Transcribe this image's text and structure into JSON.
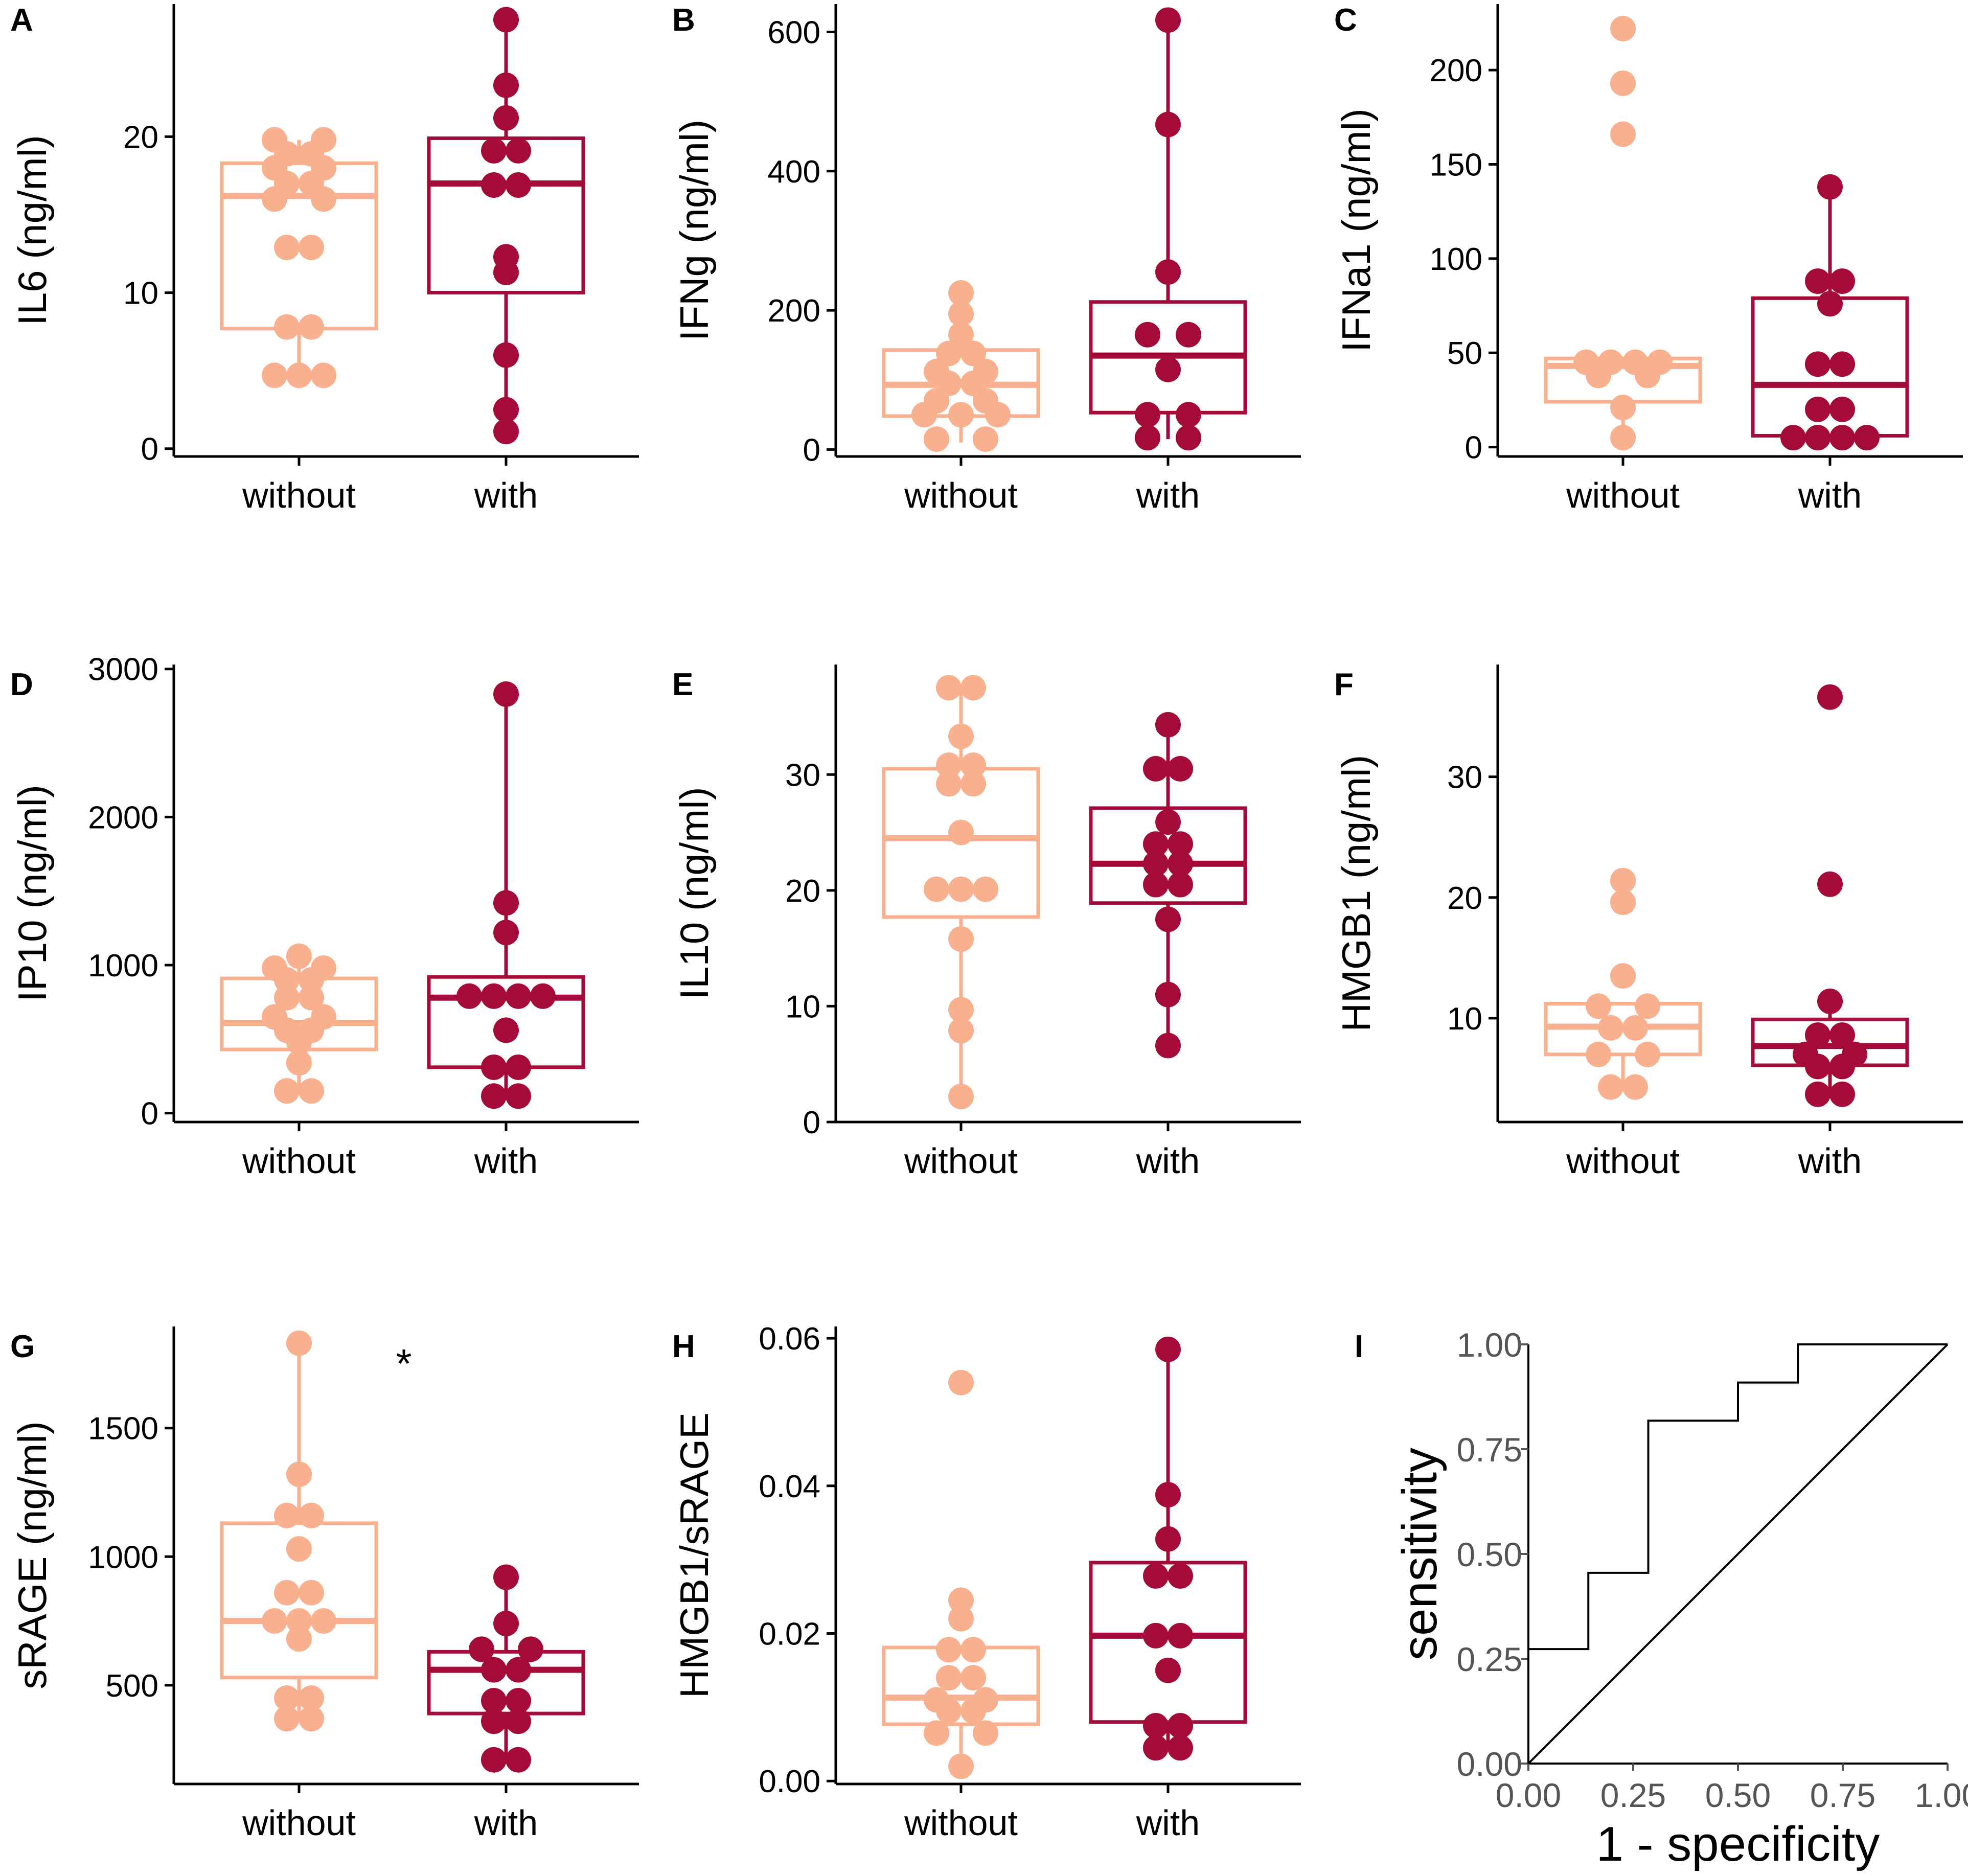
{
  "figure": {
    "colors": {
      "without": "#F9B08E",
      "with": "#A50B38",
      "axis": "#000000",
      "roc_tick": "#555555"
    }
  },
  "chart_data": [
    {
      "panel": "A",
      "type": "box",
      "ylabel": "IL6 (ng/ml)",
      "categories": [
        "without",
        "with"
      ],
      "ylim": [
        -0.5,
        28.5
      ],
      "yticks": [
        0,
        10,
        20
      ],
      "box": [
        {
          "q1": 7.7,
          "median": 16.2,
          "q3": 18.3,
          "min": 4.6,
          "max": 19.8
        },
        {
          "q1": 10.0,
          "median": 17.0,
          "q3": 19.9,
          "min": 1.1,
          "max": 27.5
        }
      ],
      "points": [
        [
          [
            -0.12,
            19.8
          ],
          [
            0.12,
            19.8
          ],
          [
            -0.06,
            18.9
          ],
          [
            0.06,
            18.9
          ],
          [
            -0.12,
            18.0
          ],
          [
            0.12,
            18.0
          ],
          [
            -0.06,
            17.0
          ],
          [
            0.06,
            17.0
          ],
          [
            -0.12,
            16.0
          ],
          [
            0.12,
            16.0
          ],
          [
            -0.06,
            12.9
          ],
          [
            0.06,
            12.9
          ],
          [
            -0.06,
            7.8
          ],
          [
            0.06,
            7.8
          ],
          [
            -0.12,
            4.7
          ],
          [
            0.0,
            4.7
          ],
          [
            0.12,
            4.7
          ]
        ],
        [
          [
            0.0,
            27.5
          ],
          [
            0.0,
            23.3
          ],
          [
            0.0,
            21.2
          ],
          [
            -0.06,
            19.1
          ],
          [
            0.06,
            19.1
          ],
          [
            -0.06,
            16.9
          ],
          [
            0.06,
            16.9
          ],
          [
            0.0,
            12.3
          ],
          [
            0.0,
            11.3
          ],
          [
            0.0,
            6.0
          ],
          [
            0.0,
            2.5
          ],
          [
            0.0,
            1.1
          ]
        ]
      ]
    },
    {
      "panel": "B",
      "type": "box",
      "ylabel": "IFNg (ng/ml)",
      "categories": [
        "without",
        "with"
      ],
      "ylim": [
        -10,
        640
      ],
      "yticks": [
        0,
        200,
        400,
        600
      ],
      "box": [
        {
          "q1": 48,
          "median": 93,
          "q3": 143,
          "min": 10,
          "max": 225
        },
        {
          "q1": 53,
          "median": 135,
          "q3": 212,
          "min": 15,
          "max": 617
        }
      ],
      "points": [
        [
          [
            0.0,
            225
          ],
          [
            0.0,
            195
          ],
          [
            0.0,
            165
          ],
          [
            -0.06,
            138
          ],
          [
            0.06,
            138
          ],
          [
            -0.12,
            112
          ],
          [
            0.12,
            112
          ],
          [
            -0.06,
            95
          ],
          [
            0.06,
            95
          ],
          [
            -0.12,
            70
          ],
          [
            0.12,
            70
          ],
          [
            -0.18,
            50
          ],
          [
            0.0,
            50
          ],
          [
            0.18,
            50
          ],
          [
            -0.12,
            15
          ],
          [
            0.12,
            15
          ]
        ],
        [
          [
            0.0,
            617
          ],
          [
            0.0,
            467
          ],
          [
            0.0,
            255
          ],
          [
            -0.1,
            165
          ],
          [
            0.1,
            165
          ],
          [
            0.0,
            115
          ],
          [
            -0.1,
            50
          ],
          [
            0.1,
            50
          ],
          [
            -0.1,
            17
          ],
          [
            0.1,
            17
          ]
        ]
      ]
    },
    {
      "panel": "C",
      "type": "box",
      "ylabel": "IFNa1 (ng/ml)",
      "categories": [
        "without",
        "with"
      ],
      "ylim": [
        -5,
        235
      ],
      "yticks": [
        0,
        50,
        100,
        150,
        200
      ],
      "box": [
        {
          "q1": 24,
          "median": 43,
          "q3": 47,
          "min": 3,
          "max": 47
        },
        {
          "q1": 6,
          "median": 33,
          "q3": 79,
          "min": 3,
          "max": 138
        }
      ],
      "points": [
        [
          [
            0.0,
            222
          ],
          [
            0.0,
            193
          ],
          [
            0.0,
            166
          ],
          [
            -0.18,
            45
          ],
          [
            -0.06,
            45
          ],
          [
            0.06,
            45
          ],
          [
            0.18,
            45
          ],
          [
            -0.12,
            38
          ],
          [
            0.12,
            38
          ],
          [
            0.0,
            21
          ],
          [
            0.0,
            5
          ]
        ],
        [
          [
            0.0,
            138
          ],
          [
            -0.06,
            88
          ],
          [
            0.06,
            88
          ],
          [
            0.0,
            76
          ],
          [
            -0.06,
            44
          ],
          [
            0.06,
            44
          ],
          [
            -0.06,
            20
          ],
          [
            0.06,
            20
          ],
          [
            -0.18,
            5
          ],
          [
            -0.06,
            5
          ],
          [
            0.06,
            5
          ],
          [
            0.18,
            5
          ]
        ]
      ]
    },
    {
      "panel": "D",
      "type": "box",
      "ylabel": "IP10 (ng/ml)",
      "categories": [
        "without",
        "with"
      ],
      "ylim": [
        -60,
        3030
      ],
      "yticks": [
        0,
        1000,
        2000,
        3000
      ],
      "box": [
        {
          "q1": 430,
          "median": 610,
          "q3": 910,
          "min": 140,
          "max": 1060
        },
        {
          "q1": 310,
          "median": 780,
          "q3": 920,
          "min": 110,
          "max": 2830
        }
      ],
      "points": [
        [
          [
            0.0,
            1060
          ],
          [
            -0.12,
            980
          ],
          [
            0.12,
            980
          ],
          [
            -0.06,
            900
          ],
          [
            0.06,
            900
          ],
          [
            -0.06,
            780
          ],
          [
            0.06,
            780
          ],
          [
            -0.12,
            650
          ],
          [
            0.12,
            650
          ],
          [
            -0.06,
            560
          ],
          [
            0.06,
            560
          ],
          [
            0.0,
            480
          ],
          [
            0.0,
            340
          ],
          [
            -0.06,
            150
          ],
          [
            0.06,
            150
          ]
        ],
        [
          [
            0.0,
            2830
          ],
          [
            0.0,
            1420
          ],
          [
            0.0,
            1220
          ],
          [
            -0.18,
            790
          ],
          [
            -0.06,
            790
          ],
          [
            0.06,
            790
          ],
          [
            0.18,
            790
          ],
          [
            0.0,
            560
          ],
          [
            -0.06,
            310
          ],
          [
            0.06,
            310
          ],
          [
            -0.06,
            115
          ],
          [
            0.06,
            115
          ]
        ]
      ]
    },
    {
      "panel": "E",
      "type": "box",
      "ylabel": "IL10 (ng/ml)",
      "categories": [
        "without",
        "with"
      ],
      "ylim": [
        0,
        39.5
      ],
      "yticks": [
        0,
        10,
        20,
        30
      ],
      "box": [
        {
          "q1": 17.7,
          "median": 24.5,
          "q3": 30.5,
          "min": 2.2,
          "max": 37.5
        },
        {
          "q1": 18.9,
          "median": 22.3,
          "q3": 27.1,
          "min": 6.6,
          "max": 34.3
        }
      ],
      "points": [
        [
          [
            -0.06,
            37.5
          ],
          [
            0.06,
            37.5
          ],
          [
            0.0,
            33.3
          ],
          [
            -0.06,
            30.8
          ],
          [
            0.06,
            30.8
          ],
          [
            -0.06,
            29.2
          ],
          [
            0.06,
            29.2
          ],
          [
            0.0,
            25.0
          ],
          [
            -0.12,
            20.1
          ],
          [
            0.0,
            20.1
          ],
          [
            0.12,
            20.1
          ],
          [
            0.0,
            15.8
          ],
          [
            0.0,
            9.7
          ],
          [
            0.0,
            7.9
          ],
          [
            0.0,
            2.2
          ]
        ],
        [
          [
            0.0,
            34.3
          ],
          [
            -0.06,
            30.5
          ],
          [
            0.06,
            30.5
          ],
          [
            0.0,
            25.9
          ],
          [
            -0.06,
            24.0
          ],
          [
            0.06,
            24.0
          ],
          [
            -0.06,
            22.3
          ],
          [
            0.06,
            22.3
          ],
          [
            -0.06,
            20.5
          ],
          [
            0.06,
            20.5
          ],
          [
            0.0,
            17.5
          ],
          [
            0.0,
            11.0
          ],
          [
            0.0,
            6.6
          ]
        ]
      ]
    },
    {
      "panel": "F",
      "type": "box",
      "ylabel": "HMGB1 (ng/ml)",
      "categories": [
        "without",
        "with"
      ],
      "ylim": [
        1.4,
        39.3
      ],
      "yticks": [
        10,
        20,
        30
      ],
      "box": [
        {
          "q1": 7.0,
          "median": 9.3,
          "q3": 11.2,
          "min": 4.2,
          "max": 11.2
        },
        {
          "q1": 6.1,
          "median": 7.7,
          "q3": 9.9,
          "min": 3.8,
          "max": 11.4
        }
      ],
      "points": [
        [
          [
            0.0,
            21.4
          ],
          [
            0.0,
            19.6
          ],
          [
            0.0,
            13.5
          ],
          [
            -0.12,
            11.0
          ],
          [
            0.12,
            11.0
          ],
          [
            -0.06,
            9.2
          ],
          [
            0.06,
            9.2
          ],
          [
            -0.12,
            7.0
          ],
          [
            0.12,
            7.0
          ],
          [
            -0.06,
            4.3
          ],
          [
            0.06,
            4.3
          ]
        ],
        [
          [
            0.0,
            36.6
          ],
          [
            0.0,
            21.1
          ],
          [
            0.0,
            11.4
          ],
          [
            -0.06,
            8.6
          ],
          [
            0.06,
            8.6
          ],
          [
            -0.12,
            7.0
          ],
          [
            0.12,
            7.0
          ],
          [
            -0.06,
            6.0
          ],
          [
            0.06,
            6.0
          ],
          [
            -0.06,
            3.7
          ],
          [
            0.06,
            3.7
          ]
        ]
      ]
    },
    {
      "panel": "G",
      "type": "box",
      "ylabel": "sRAGE (ng/ml)",
      "categories": [
        "without",
        "with"
      ],
      "ylim": [
        116,
        1895
      ],
      "yticks": [
        500,
        1000,
        1500
      ],
      "annotation": "*",
      "box": [
        {
          "q1": 530,
          "median": 750,
          "q3": 1130,
          "min": 370,
          "max": 1830
        },
        {
          "q1": 390,
          "median": 560,
          "q3": 630,
          "min": 210,
          "max": 920
        }
      ],
      "points": [
        [
          [
            0.0,
            1830
          ],
          [
            0.0,
            1320
          ],
          [
            -0.06,
            1160
          ],
          [
            0.06,
            1160
          ],
          [
            0.0,
            1030
          ],
          [
            -0.06,
            860
          ],
          [
            0.06,
            860
          ],
          [
            -0.12,
            750
          ],
          [
            0.0,
            750
          ],
          [
            0.12,
            750
          ],
          [
            0.0,
            680
          ],
          [
            -0.06,
            450
          ],
          [
            0.06,
            450
          ],
          [
            -0.06,
            370
          ],
          [
            0.06,
            370
          ]
        ],
        [
          [
            0.0,
            920
          ],
          [
            0.0,
            740
          ],
          [
            -0.12,
            640
          ],
          [
            0.12,
            640
          ],
          [
            -0.06,
            560
          ],
          [
            0.06,
            560
          ],
          [
            -0.06,
            440
          ],
          [
            0.06,
            440
          ],
          [
            -0.06,
            360
          ],
          [
            0.06,
            360
          ],
          [
            -0.06,
            210
          ],
          [
            0.06,
            210
          ]
        ]
      ]
    },
    {
      "panel": "H",
      "type": "box",
      "ylabel": "HMGB1/sRAGE",
      "categories": [
        "without",
        "with"
      ],
      "ylim": [
        -0.0004,
        0.0616
      ],
      "yticks": [
        0.0,
        0.02,
        0.04,
        0.06
      ],
      "ytick_labels": [
        "0.00",
        "0.02",
        "0.04",
        "0.06"
      ],
      "box": [
        {
          "q1": 0.0077,
          "median": 0.0113,
          "q3": 0.0181,
          "min": 0.0017,
          "max": 0.0181
        },
        {
          "q1": 0.008,
          "median": 0.0197,
          "q3": 0.0296,
          "min": 0.0045,
          "max": 0.0585
        }
      ],
      "points": [
        [
          [
            0.0,
            0.054
          ],
          [
            0.0,
            0.0245
          ],
          [
            0.0,
            0.022
          ],
          [
            -0.06,
            0.0178
          ],
          [
            0.06,
            0.0178
          ],
          [
            -0.06,
            0.014
          ],
          [
            0.06,
            0.014
          ],
          [
            -0.12,
            0.011
          ],
          [
            0.12,
            0.011
          ],
          [
            -0.06,
            0.0095
          ],
          [
            0.06,
            0.0095
          ],
          [
            -0.12,
            0.0065
          ],
          [
            0.12,
            0.0065
          ],
          [
            0.0,
            0.002
          ]
        ],
        [
          [
            0.0,
            0.0585
          ],
          [
            0.0,
            0.0388
          ],
          [
            0.0,
            0.0328
          ],
          [
            -0.06,
            0.0278
          ],
          [
            0.06,
            0.0278
          ],
          [
            -0.06,
            0.0197
          ],
          [
            0.06,
            0.0197
          ],
          [
            0.0,
            0.015
          ],
          [
            -0.06,
            0.0075
          ],
          [
            0.06,
            0.0075
          ],
          [
            -0.06,
            0.0045
          ],
          [
            0.06,
            0.0045
          ]
        ]
      ]
    },
    {
      "panel": "I",
      "type": "line",
      "title": "",
      "xlabel": "1 - specificity",
      "ylabel": "sensitivity",
      "xlim": [
        0,
        1
      ],
      "ylim": [
        0,
        1
      ],
      "ticks": [
        0,
        0.25,
        0.5,
        0.75,
        1.0
      ],
      "tick_labels": [
        "0.00",
        "0.25",
        "0.50",
        "0.75",
        "1.00"
      ],
      "series": [
        {
          "name": "ROC",
          "x": [
            0,
            0,
            0.143,
            0.143,
            0.286,
            0.286,
            0.5,
            0.5,
            0.643,
            0.643,
            1.0
          ],
          "y": [
            0,
            0.273,
            0.273,
            0.455,
            0.455,
            0.818,
            0.818,
            0.909,
            0.909,
            1.0,
            1.0
          ]
        },
        {
          "name": "diagonal",
          "x": [
            0,
            1
          ],
          "y": [
            0,
            1
          ]
        }
      ]
    }
  ]
}
